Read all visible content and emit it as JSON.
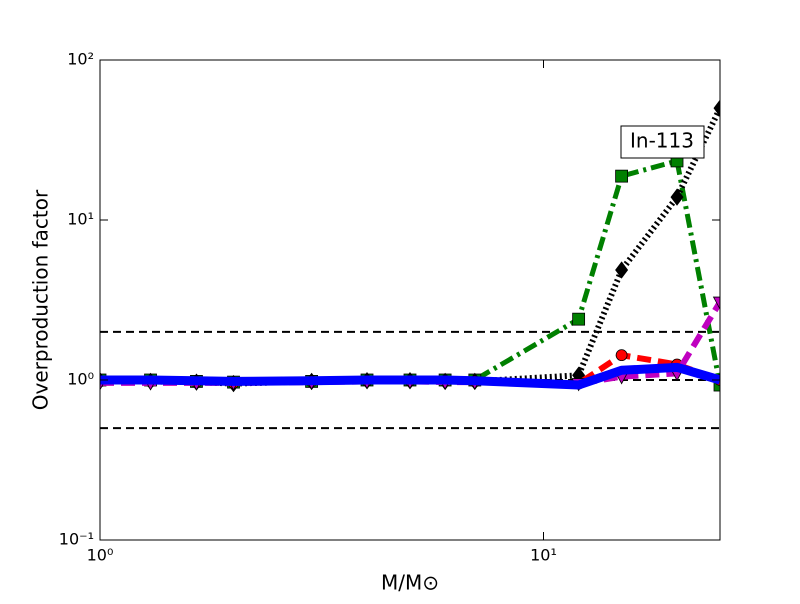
{
  "chart_data": {
    "type": "line",
    "xlabel": "M/M⊙",
    "ylabel": "Overproduction factor",
    "annotation": "In-113",
    "xscale": "log",
    "yscale": "log",
    "xlim": [
      1,
      25
    ],
    "ylim": [
      0.1,
      100
    ],
    "xticks": [
      {
        "value": 1,
        "label": "10⁰"
      },
      {
        "value": 10,
        "label": "10¹"
      }
    ],
    "yticks": [
      {
        "value": 0.1,
        "label": "10⁻¹"
      },
      {
        "value": 1,
        "label": "10⁰"
      },
      {
        "value": 10,
        "label": "10¹"
      },
      {
        "value": 100,
        "label": "10²"
      }
    ],
    "hlines": [
      0.5,
      1,
      2
    ],
    "x": [
      1,
      1.3,
      1.65,
      2,
      3,
      4,
      5,
      6,
      7,
      12,
      15,
      20,
      25
    ],
    "series": [
      {
        "color": "#008000",
        "linestyle": "dashdot",
        "marker": "square",
        "values": [
          1.0,
          1.0,
          0.98,
          0.97,
          0.98,
          1.0,
          1.0,
          1.0,
          1.0,
          2.4,
          18.8,
          23.4,
          0.93
        ]
      },
      {
        "color": "#000000",
        "linestyle": "dotted",
        "marker": "diamond",
        "values": [
          0.99,
          0.98,
          0.97,
          0.95,
          0.98,
          0.99,
          0.99,
          0.98,
          0.98,
          1.07,
          4.87,
          13.9,
          50
        ]
      },
      {
        "color": "#ff0000",
        "linestyle": "dashed",
        "marker": "circle",
        "values": [
          0.98,
          0.98,
          0.97,
          0.96,
          0.98,
          0.99,
          0.99,
          0.99,
          0.98,
          0.95,
          1.43,
          1.25,
          1.0
        ]
      },
      {
        "color": "#bf00bf",
        "linestyle": "dashed",
        "marker": "triangle",
        "values": [
          0.96,
          0.96,
          0.96,
          0.96,
          0.97,
          0.98,
          0.98,
          0.97,
          0.97,
          0.95,
          1.05,
          1.1,
          3.07
        ]
      },
      {
        "color": "#0000ff",
        "linestyle": "solid",
        "marker": "none",
        "values": [
          1.0,
          1.0,
          0.99,
          0.98,
          0.99,
          1.0,
          1.0,
          1.0,
          0.99,
          0.93,
          1.15,
          1.2,
          1.0
        ]
      }
    ]
  }
}
